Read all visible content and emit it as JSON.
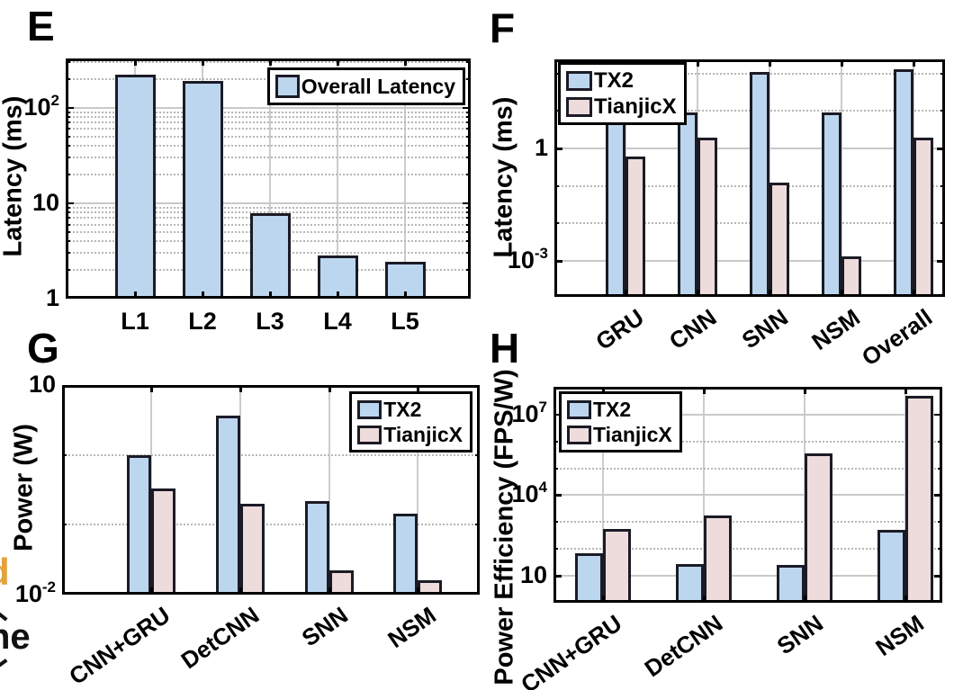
{
  "page": {
    "background": "#ffffff",
    "fragments": {
      "left_top": "d",
      "left_bottom": "he",
      "orange_color": "#E2A33C"
    }
  },
  "colors": {
    "tx2_blue": "#BCD6EF",
    "tianjicx_pink": "#EEDBDB",
    "bar_edge": "#1b1b26"
  },
  "chart_data": [
    {
      "id": "E",
      "panel_letter": "E",
      "type": "bar",
      "yscale": "log",
      "ylabel": "Latency (ms)",
      "ylim": [
        1,
        330
      ],
      "yticks": [
        {
          "value": 100,
          "base": "10",
          "exp": "2"
        },
        {
          "value": 10,
          "label": "10"
        },
        {
          "value": 1,
          "label": "1"
        }
      ],
      "minor_grid": "log-minor",
      "grid": true,
      "categories": [
        "L1",
        "L2",
        "L3",
        "L4",
        "L5"
      ],
      "series": [
        {
          "name": "Overall Latency",
          "color": "#BCD6EF",
          "values": [
            225,
            190,
            7.9,
            2.85,
            2.45
          ]
        }
      ],
      "legend": {
        "position": "top-right",
        "entries": [
          "Overall Latency"
        ]
      },
      "x_label_rotation": 0
    },
    {
      "id": "F",
      "panel_letter": "F",
      "type": "bar",
      "yscale": "log",
      "ylabel": "Latency (ms)",
      "ylim": [
        0.00011,
        238
      ],
      "yticks": [
        {
          "value": 1,
          "label": "1"
        },
        {
          "value": 0.001,
          "base": "10",
          "exp": "-3"
        }
      ],
      "minor_grid": "decades",
      "grid": true,
      "categories": [
        "GRU",
        "CNN",
        "SNN",
        "NSM",
        "Overall"
      ],
      "series": [
        {
          "name": "TX2",
          "color": "#BCD6EF",
          "values": [
            5.3,
            9,
            110,
            9,
            130
          ]
        },
        {
          "name": "TianjicX",
          "color": "#EEDBDB",
          "values": [
            0.62,
            1.9,
            0.12,
            0.0013,
            1.9
          ]
        }
      ],
      "legend": {
        "position": "top-left",
        "entries": [
          "TX2",
          "TianjicX"
        ]
      },
      "x_label_rotation": -35
    },
    {
      "id": "G",
      "panel_letter": "G",
      "type": "bar",
      "yscale": "log",
      "ylabel": "Power (W)",
      "ylim": [
        0.01,
        10
      ],
      "yticks": [
        {
          "value": 10,
          "label": "10"
        },
        {
          "value": 0.01,
          "base": "10",
          "exp": "-2"
        }
      ],
      "minor_grid": "decades",
      "grid": true,
      "categories": [
        "CNN+GRU",
        "DetCNN",
        "SNN",
        "NSM"
      ],
      "series": [
        {
          "name": "TX2",
          "color": "#BCD6EF",
          "values": [
            1.0,
            3.7,
            0.22,
            0.145
          ]
        },
        {
          "name": "TianjicX",
          "color": "#EEDBDB",
          "values": [
            0.33,
            0.2,
            0.022,
            0.016
          ]
        }
      ],
      "legend": {
        "position": "top-right",
        "entries": [
          "TX2",
          "TianjicX"
        ]
      },
      "x_label_rotation": -35
    },
    {
      "id": "H",
      "panel_letter": "H",
      "type": "bar",
      "yscale": "log",
      "ylabel": "Power Efficiency (FPS/W)",
      "ylim": [
        1,
        107000000
      ],
      "yticks": [
        {
          "value": 10000000,
          "base": "10",
          "exp": "7"
        },
        {
          "value": 10000,
          "base": "10",
          "exp": "4"
        },
        {
          "value": 10,
          "label": "10"
        }
      ],
      "minor_grid": "decades",
      "grid": true,
      "categories": [
        "CNN+GRU",
        "DetCNN",
        "SNN",
        "NSM"
      ],
      "series": [
        {
          "name": "TX2",
          "color": "#BCD6EF",
          "values": [
            70,
            27,
            26,
            520
          ]
        },
        {
          "name": "TianjicX",
          "color": "#EEDBDB",
          "values": [
            560,
            1800,
            350000,
            50000000
          ]
        }
      ],
      "legend": {
        "position": "top-left",
        "entries": [
          "TX2",
          "TianjicX"
        ]
      },
      "x_label_rotation": -35
    }
  ]
}
